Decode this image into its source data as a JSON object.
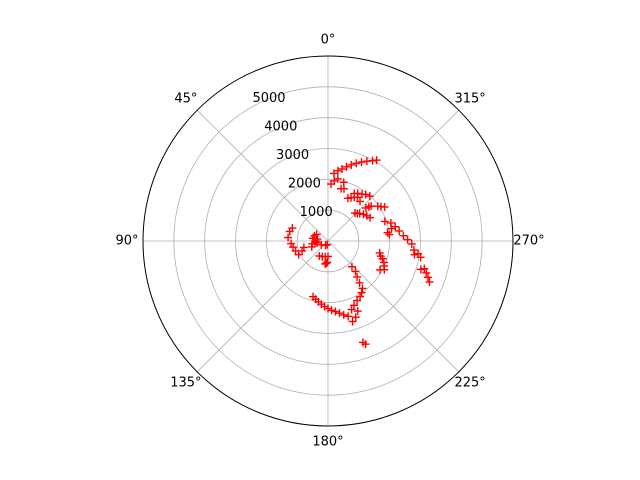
{
  "chart_data": {
    "type": "scatter",
    "subtype": "polar",
    "theta_zero_location": "N",
    "theta_direction": "counterclockwise",
    "angle_unit": "degrees",
    "r_lim": [
      0,
      6000
    ],
    "grid": true,
    "angle_ticks": [
      {
        "deg": 0,
        "label": "0°"
      },
      {
        "deg": 45,
        "label": "45°"
      },
      {
        "deg": 90,
        "label": "90°"
      },
      {
        "deg": 135,
        "label": "135°"
      },
      {
        "deg": 180,
        "label": "180°"
      },
      {
        "deg": 225,
        "label": "225°"
      },
      {
        "deg": 270,
        "label": "270°"
      },
      {
        "deg": 315,
        "label": "315°"
      }
    ],
    "radial_ticks": [
      {
        "r": 1000,
        "label": "1000"
      },
      {
        "r": 2000,
        "label": "2000"
      },
      {
        "r": 3000,
        "label": "3000"
      },
      {
        "r": 4000,
        "label": "4000"
      },
      {
        "r": 5000,
        "label": "5000"
      }
    ],
    "radial_gridlines": [
      1000,
      2000,
      3000,
      4000,
      5000
    ],
    "series": [
      {
        "marker": "+",
        "color": "#ff0000",
        "points": [
          [
            355,
            2200
          ],
          [
            352,
            2300
          ],
          [
            349,
            2380
          ],
          [
            346,
            2480
          ],
          [
            343,
            2580
          ],
          [
            340,
            2680
          ],
          [
            337,
            2780
          ],
          [
            334,
            2880
          ],
          [
            331,
            2980
          ],
          [
            329,
            3060
          ],
          [
            357,
            1850
          ],
          [
            354,
            1960
          ],
          [
            351,
            2040
          ],
          [
            346,
            1750
          ],
          [
            345,
            1970
          ],
          [
            343,
            1770
          ],
          [
            331,
            1760
          ],
          [
            328,
            1820
          ],
          [
            324,
            1880
          ],
          [
            321,
            1940
          ],
          [
            317,
            1990
          ],
          [
            335,
            1530
          ],
          [
            332,
            1590
          ],
          [
            329,
            1650
          ],
          [
            326,
            1710
          ],
          [
            321,
            1650
          ],
          [
            311,
            1630
          ],
          [
            310,
            1730
          ],
          [
            309,
            1800
          ],
          [
            316,
            1260
          ],
          [
            313,
            1300
          ],
          [
            311,
            1360
          ],
          [
            307,
            1440
          ],
          [
            303,
            1500
          ],
          [
            299,
            1560
          ],
          [
            305,
            1970
          ],
          [
            303,
            2050
          ],
          [
            301,
            2140
          ],
          [
            289,
            1950
          ],
          [
            286,
            2120
          ],
          [
            282,
            2230
          ],
          [
            278,
            2330
          ],
          [
            274,
            2450
          ],
          [
            271,
            2580
          ],
          [
            268,
            2720
          ],
          [
            278,
            1950
          ],
          [
            276,
            2000
          ],
          [
            281,
            2100
          ],
          [
            264,
            2800
          ],
          [
            261,
            2840
          ],
          [
            262,
            2950
          ],
          [
            260,
            3050
          ],
          [
            253,
            3150
          ],
          [
            254,
            3250
          ],
          [
            252,
            3350
          ],
          [
            250,
            3450
          ],
          [
            248,
            3550
          ],
          [
            257,
            1720
          ],
          [
            254,
            1780
          ],
          [
            252,
            1860
          ],
          [
            249,
            1940
          ],
          [
            246,
            1990
          ],
          [
            243,
            2050
          ],
          [
            241,
            1930
          ],
          [
            223,
            1140
          ],
          [
            222,
            1330
          ],
          [
            219,
            1500
          ],
          [
            217,
            1700
          ],
          [
            216,
            1900
          ],
          [
            213,
            2000
          ],
          [
            210,
            2080
          ],
          [
            206,
            2150
          ],
          [
            202,
            2250
          ],
          [
            199,
            2350
          ],
          [
            203,
            2470
          ],
          [
            200,
            2630
          ],
          [
            197,
            2730
          ],
          [
            165,
            1870
          ],
          [
            168,
            1930
          ],
          [
            171,
            2000
          ],
          [
            174,
            2060
          ],
          [
            177,
            2130
          ],
          [
            180,
            2190
          ],
          [
            183,
            2250
          ],
          [
            186,
            2300
          ],
          [
            189,
            2370
          ],
          [
            192,
            2450
          ],
          [
            195,
            2530
          ],
          [
            199,
            3480
          ],
          [
            200,
            3560
          ],
          [
            178,
            690
          ],
          [
            176,
            720
          ],
          [
            173,
            750
          ],
          [
            168,
            120
          ],
          [
            150,
            160
          ],
          [
            120,
            250
          ],
          [
            180,
            500
          ],
          [
            170,
            520
          ],
          [
            160,
            540
          ],
          [
            150,
            560
          ],
          [
            80,
            350
          ],
          [
            90,
            380
          ],
          [
            95,
            420
          ],
          [
            100,
            360
          ],
          [
            60,
            430
          ],
          [
            70,
            470
          ],
          [
            80,
            500
          ],
          [
            100,
            520
          ],
          [
            110,
            560
          ],
          [
            105,
            810
          ],
          [
            111,
            900
          ],
          [
            115,
            1050
          ],
          [
            107,
            1100
          ],
          [
            100,
            1150
          ],
          [
            94,
            1200
          ],
          [
            85,
            1300
          ],
          [
            76,
            1280
          ],
          [
            70,
            1230
          ]
        ]
      }
    ]
  }
}
